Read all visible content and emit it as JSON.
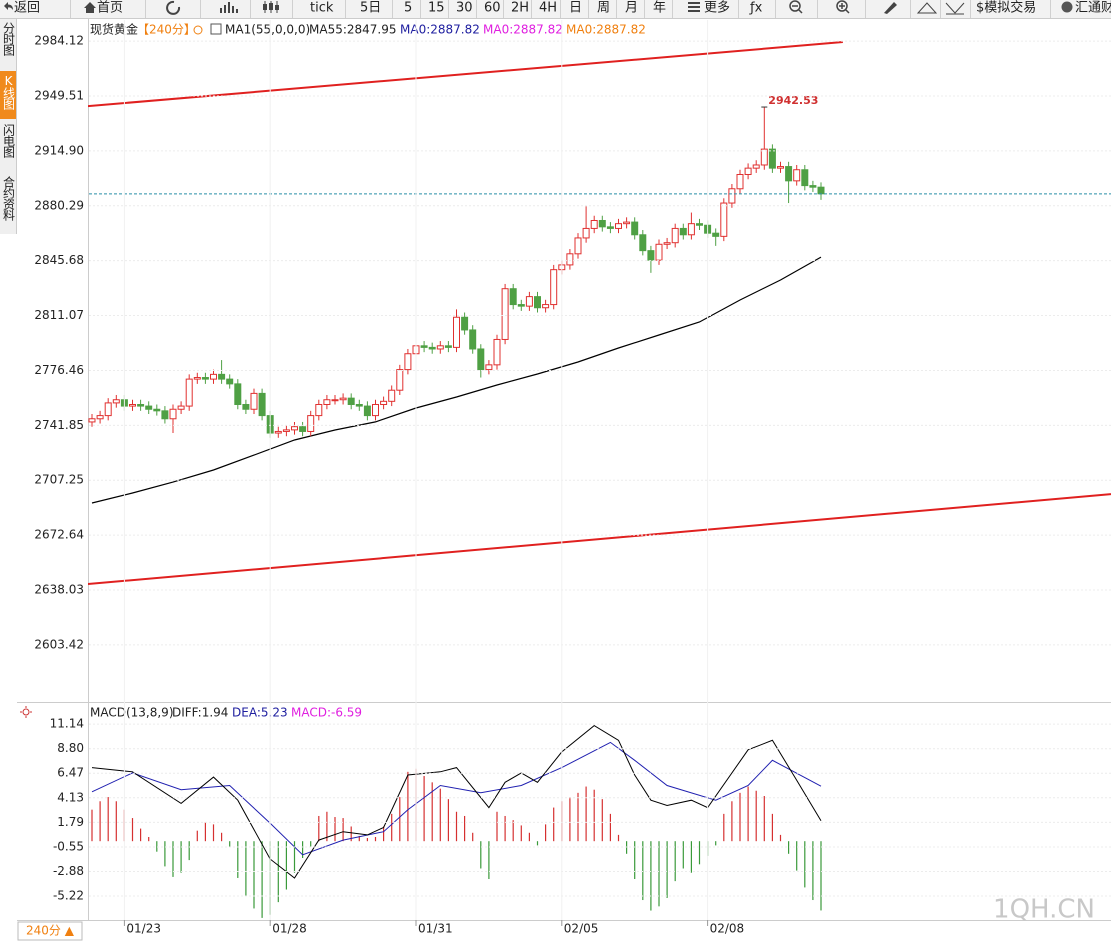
{
  "toolbar": [
    "返回",
    "首页",
    "tick",
    "5日",
    "5",
    "15",
    "30",
    "60",
    "2H",
    "4H",
    "日",
    "周",
    "月",
    "年",
    "更多",
    "ƒx",
    "$模拟交易",
    "汇通财"
  ],
  "sidebar": [
    "分时图",
    "K线图",
    "闪电图",
    "合约资料"
  ],
  "bottom_tab": "240分 ▲",
  "watermark": "1QH.CN",
  "chart_data": [
    {
      "type": "candlestick",
      "legend": [
        {
          "text": "现货黄金",
          "color": "#222222"
        },
        {
          "text": "【240分】",
          "color": "#f08010"
        },
        {
          "text": "MA1(55,0,0,0)",
          "color": "#222222"
        },
        {
          "text": "MA55:2847.95",
          "color": "#222222"
        },
        {
          "text": "MA0:2887.82",
          "color": "#2020a0"
        },
        {
          "text": "MA0:2887.82",
          "color": "#e020e0"
        },
        {
          "text": "MA0:2887.82",
          "color": "#f08010"
        }
      ],
      "categories": [
        null,
        null,
        null,
        null,
        "01/23",
        null,
        null,
        null,
        null,
        null,
        null,
        null,
        null,
        null,
        null,
        null,
        null,
        null,
        null,
        null,
        null,
        null,
        "01/28",
        null,
        null,
        null,
        null,
        null,
        null,
        null,
        null,
        null,
        null,
        null,
        null,
        null,
        null,
        null,
        null,
        null,
        "01/31",
        null,
        null,
        null,
        null,
        null,
        null,
        null,
        null,
        null,
        null,
        null,
        null,
        null,
        null,
        null,
        null,
        null,
        "02/05",
        null,
        null,
        null,
        null,
        null,
        null,
        null,
        null,
        null,
        null,
        null,
        null,
        null,
        null,
        null,
        null,
        null,
        "02/08",
        null,
        null,
        null,
        null,
        null,
        null,
        null,
        null,
        null,
        null,
        null,
        null,
        null,
        null
      ],
      "candles": {
        "open": [
          2744,
          2746,
          2748,
          2756,
          2758,
          2754,
          2755,
          2754,
          2752,
          2751,
          2746,
          2752,
          2754,
          2771,
          2772,
          2771,
          2774,
          2771,
          2768,
          2755,
          2752,
          2762,
          2748,
          2737,
          2738,
          2739,
          2741,
          2738,
          2748,
          2755,
          2758,
          2758,
          2759,
          2755,
          2754,
          2748,
          2755,
          2757,
          2764,
          2777,
          2787,
          2792,
          2791,
          2790,
          2792,
          2791,
          2810,
          2802,
          2790,
          2777,
          2780,
          2796,
          2828,
          2818,
          2817,
          2823,
          2816,
          2818,
          2840,
          2843,
          2850,
          2860,
          2866,
          2871,
          2867,
          2866,
          2869,
          2870,
          2862,
          2852,
          2846,
          2856,
          2857,
          2866,
          2862,
          2869,
          2868,
          2863,
          2861,
          2882,
          2891,
          2900,
          2904,
          2906,
          2916,
          2904,
          2905,
          2896,
          2903,
          2893,
          2892
        ],
        "high": [
          2749,
          2751,
          2759,
          2761,
          2761,
          2758,
          2758,
          2757,
          2755,
          2754,
          2755,
          2757,
          2774,
          2775,
          2775,
          2777,
          2783,
          2774,
          2771,
          2758,
          2765,
          2765,
          2751,
          2741,
          2742,
          2744,
          2744,
          2751,
          2758,
          2761,
          2761,
          2762,
          2762,
          2758,
          2757,
          2758,
          2760,
          2767,
          2780,
          2790,
          2795,
          2795,
          2794,
          2795,
          2795,
          2815,
          2813,
          2805,
          2793,
          2783,
          2799,
          2831,
          2831,
          2821,
          2826,
          2826,
          2821,
          2843,
          2846,
          2853,
          2863,
          2880,
          2874,
          2874,
          2870,
          2872,
          2873,
          2873,
          2865,
          2855,
          2859,
          2860,
          2869,
          2869,
          2876,
          2872,
          2871,
          2866,
          2885,
          2894,
          2903,
          2907,
          2909,
          2942.53,
          2919,
          2908,
          2908,
          2906,
          2906,
          2896,
          2895
        ],
        "low": [
          2741,
          2743,
          2745,
          2753,
          2751,
          2751,
          2751,
          2749,
          2748,
          2743,
          2737,
          2749,
          2751,
          2768,
          2768,
          2768,
          2768,
          2765,
          2752,
          2749,
          2749,
          2745,
          2734,
          2734,
          2735,
          2736,
          2735,
          2735,
          2745,
          2752,
          2755,
          2755,
          2752,
          2751,
          2745,
          2745,
          2752,
          2754,
          2761,
          2774,
          2784,
          2788,
          2787,
          2787,
          2788,
          2788,
          2799,
          2787,
          2772,
          2774,
          2777,
          2793,
          2815,
          2814,
          2814,
          2813,
          2813,
          2815,
          2837,
          2840,
          2847,
          2857,
          2863,
          2864,
          2863,
          2863,
          2866,
          2859,
          2849,
          2838,
          2843,
          2853,
          2854,
          2859,
          2859,
          2865,
          2860,
          2855,
          2858,
          2879,
          2888,
          2897,
          2901,
          2903,
          2901,
          2901,
          2882,
          2893,
          2890,
          2889,
          2884
        ],
        "close": [
          2746,
          2748,
          2756,
          2758,
          2754,
          2755,
          2754,
          2752,
          2751,
          2746,
          2752,
          2754,
          2771,
          2772,
          2771,
          2774,
          2771,
          2768,
          2755,
          2752,
          2762,
          2748,
          2737,
          2738,
          2739,
          2741,
          2738,
          2748,
          2755,
          2758,
          2758,
          2759,
          2755,
          2754,
          2748,
          2755,
          2757,
          2764,
          2777,
          2787,
          2792,
          2791,
          2790,
          2792,
          2791,
          2810,
          2802,
          2790,
          2777,
          2780,
          2796,
          2828,
          2818,
          2817,
          2823,
          2816,
          2818,
          2840,
          2843,
          2850,
          2860,
          2866,
          2871,
          2867,
          2866,
          2869,
          2870,
          2862,
          2852,
          2846,
          2856,
          2857,
          2866,
          2862,
          2869,
          2868,
          2863,
          2861,
          2882,
          2891,
          2900,
          2904,
          2906,
          2916,
          2904,
          2905,
          2896,
          2903,
          2893,
          2892,
          2887.82
        ],
        "up_color": "#e0302f",
        "down_color": "#4fa044"
      },
      "ma": {
        "color": "#000000",
        "x": [
          0,
          5,
          10,
          15,
          20,
          25,
          30,
          35,
          40,
          45,
          50,
          55,
          60,
          65,
          70,
          75,
          80,
          85,
          90
        ],
        "values": [
          2692.9,
          2699.2,
          2706.1,
          2713.7,
          2723.1,
          2732.6,
          2738.9,
          2744,
          2752.8,
          2759.7,
          2767.3,
          2774.2,
          2781.8,
          2790.6,
          2798.8,
          2807,
          2820.9,
          2833.5,
          2847.95
        ]
      },
      "trendlines": [
        {
          "start": [
            -0.5,
            2943.1
          ],
          "end": [
            92.7,
            2983.5
          ],
          "color": "#e0201f"
        },
        {
          "start": [
            -0.5,
            2641.8
          ],
          "end": [
            125.8,
            2698.5
          ],
          "color": "#e0201f"
        }
      ],
      "last_price_line_color": "#2a8fa8",
      "ylim": [
        2568.7,
        2997.4
      ],
      "yticks": [
        2984.12,
        2949.51,
        {
          "value": 2914.9,
          "label": "2914.90"
        },
        2880.29,
        2845.68,
        2811.07,
        2776.46,
        2741.85,
        2707.25,
        2672.64,
        2638.03,
        2603.42
      ],
      "grid": true
    },
    {
      "type": "macd",
      "legend": [
        {
          "text": "MACD(13,8,9)",
          "color": "#222222"
        },
        {
          "text": "DIFF:1.94",
          "color": "#222222"
        },
        {
          "text": "DEA:5.23",
          "color": "#2020a0"
        },
        {
          "text": "MACD:-6.59",
          "color": "#e020e0"
        }
      ],
      "diff": {
        "color": "#000000",
        "x": [
          0,
          5,
          11,
          15,
          18,
          22,
          25,
          28,
          31,
          34,
          36,
          39,
          43,
          45,
          49,
          51,
          53,
          55,
          58,
          62,
          65,
          67,
          69,
          71,
          74,
          76,
          81,
          84,
          87,
          90
        ],
        "values": [
          7.0,
          6.6,
          3.6,
          6.1,
          3.9,
          -1.7,
          -3.5,
          0.1,
          0.9,
          0.6,
          1.3,
          6.3,
          6.6,
          7.0,
          3.2,
          5.6,
          6.5,
          5.6,
          8.5,
          11.0,
          9.6,
          6.3,
          3.9,
          3.4,
          3.9,
          3.2,
          8.7,
          9.6,
          5.8,
          1.94
        ]
      },
      "dea": {
        "color": "#2020b0",
        "x": [
          0,
          5,
          11,
          17,
          22,
          26,
          31,
          36,
          39,
          43,
          48,
          53,
          58,
          64,
          67,
          71,
          77,
          81,
          84,
          90
        ],
        "values": [
          4.7,
          6.5,
          4.9,
          5.3,
          1.7,
          -1.3,
          0.1,
          0.9,
          3.0,
          5.3,
          4.6,
          5.3,
          7.0,
          9.4,
          7.7,
          5.3,
          3.9,
          5.3,
          7.7,
          5.23
        ]
      },
      "histogram": {
        "up_color": "#d63030",
        "down_color": "#3a9a3a",
        "values": [
          3.0,
          3.8,
          4.2,
          3.8,
          3.0,
          2.2,
          1.2,
          0.4,
          -1.0,
          -2.4,
          -3.4,
          -3.0,
          -1.8,
          1.0,
          1.8,
          1.6,
          0.8,
          -0.6,
          -3.5,
          -5.2,
          -6.4,
          -7.3,
          -7.0,
          -5.8,
          -4.6,
          -3.0,
          -1.6,
          -0.5,
          2.4,
          2.8,
          2.3,
          2.2,
          1.4,
          0.5,
          0.3,
          0.4,
          1.4,
          2.6,
          4.2,
          6.6,
          6.9,
          6.2,
          5.6,
          5.0,
          4.0,
          2.8,
          2.4,
          0.8,
          -2.6,
          -3.6,
          2.8,
          2.4,
          2.0,
          1.5,
          0.8,
          -0.4,
          1.6,
          3.2,
          3.8,
          4.2,
          4.6,
          5.2,
          4.9,
          4.0,
          2.6,
          0.6,
          -1.2,
          -3.6,
          -5.6,
          -6.6,
          -6.2,
          -5.4,
          -3.8,
          -2.6,
          -3.0,
          -2.2,
          -1.4,
          -0.4,
          2.6,
          3.8,
          4.6,
          5.2,
          4.8,
          4.3,
          2.6,
          0.6,
          -1.2,
          -2.8,
          -4.4,
          -5.6,
          -6.59
        ]
      },
      "ylim": [
        -7.5,
        12.96
      ],
      "yticks": [
        11.14,
        {
          "value": 8.8,
          "label": "8.80"
        },
        6.47,
        4.13,
        1.79,
        -0.55,
        -2.88,
        -5.22
      ],
      "grid": true
    }
  ]
}
